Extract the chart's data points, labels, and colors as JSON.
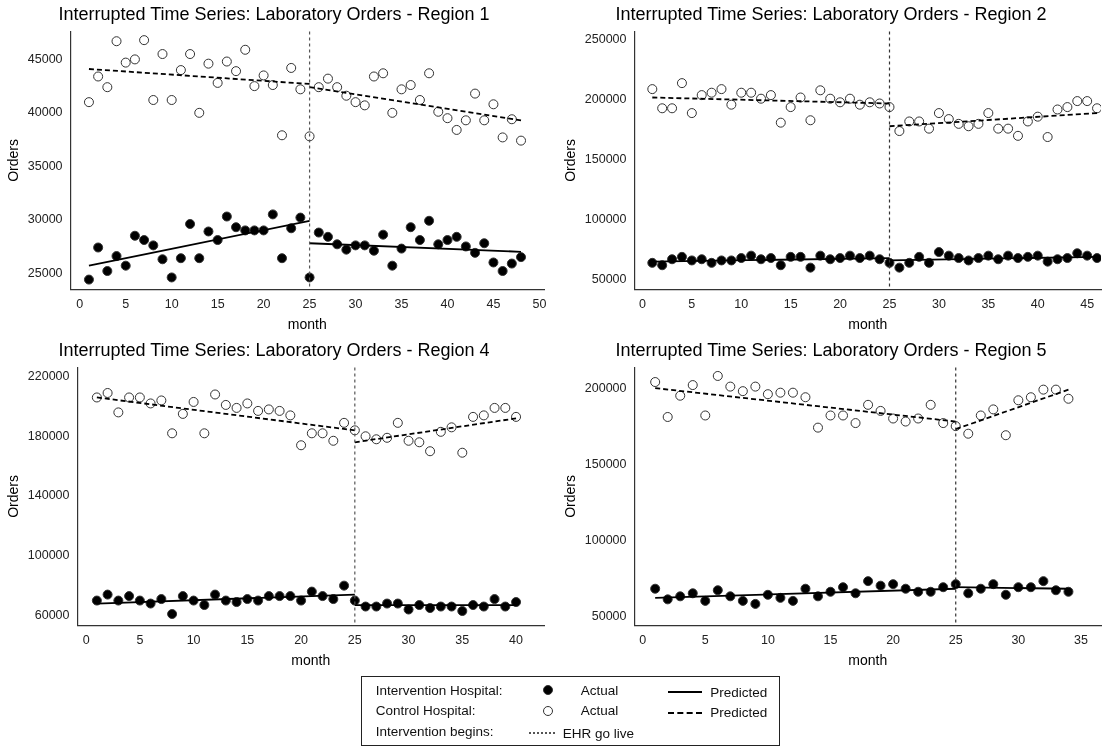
{
  "chart_data": [
    {
      "type": "scatter",
      "title": "Interrupted Time Series: Laboratory Orders - Region 1",
      "xlabel": "month",
      "ylabel": "Orders",
      "xlim": [
        -1,
        50.5
      ],
      "xticks": [
        0,
        5,
        10,
        15,
        20,
        25,
        30,
        35,
        40,
        45,
        50
      ],
      "ylim": [
        23500,
        47600
      ],
      "yticks": [
        25000,
        30000,
        35000,
        40000,
        45000
      ],
      "grid": false,
      "legend": "bottom",
      "annotations": [
        "Intervention Hospital:",
        "Control Hospital:",
        "Intervention begins:"
      ],
      "ref_lines": [
        {
          "axis": "x",
          "value": 25,
          "label": "EHR go live",
          "color": "#555555",
          "line_style": "dotted"
        }
      ],
      "x": [
        1,
        2,
        3,
        4,
        5,
        6,
        7,
        8,
        9,
        10,
        11,
        12,
        13,
        14,
        15,
        16,
        17,
        18,
        19,
        20,
        21,
        22,
        23,
        24,
        25,
        26,
        27,
        28,
        29,
        30,
        31,
        32,
        33,
        34,
        35,
        36,
        37,
        38,
        39,
        40,
        41,
        42,
        43,
        44,
        45,
        46,
        47,
        48
      ],
      "series": [
        {
          "name": "Actual",
          "marker": "circle",
          "color": "#000000",
          "values": [
            24400,
            27400,
            25200,
            26600,
            25700,
            28500,
            28100,
            27600,
            26300,
            24600,
            26400,
            29600,
            26400,
            28900,
            28100,
            30300,
            29300,
            29000,
            29000,
            29000,
            30500,
            26400,
            29200,
            30200,
            24600,
            28800,
            28400,
            27700,
            27200,
            27600,
            27600,
            27100,
            28600,
            25700,
            27300,
            29300,
            28100,
            29900,
            27700,
            28100,
            28400,
            27500,
            26900,
            27800,
            26000,
            25200,
            25900,
            26500
          ]
        },
        {
          "name": "Actual",
          "marker": "circle",
          "color": "#ffffff",
          "values": [
            41000,
            43400,
            42400,
            46700,
            44700,
            45000,
            46800,
            41200,
            45500,
            41200,
            44000,
            45500,
            40000,
            44600,
            42800,
            44800,
            43900,
            45900,
            42500,
            43500,
            42600,
            37900,
            44200,
            42200,
            37800,
            42400,
            43200,
            42400,
            41600,
            41000,
            40700,
            43400,
            43700,
            40000,
            42200,
            42600,
            41200,
            43700,
            40100,
            39500,
            38400,
            39300,
            41800,
            39300,
            40800,
            37700,
            39400,
            37400
          ]
        },
        {
          "name": "Predicted",
          "type": "line",
          "color": "#000000",
          "line_style": "solid",
          "x": [
            1,
            25
          ],
          "values": [
            25700,
            29900
          ]
        },
        {
          "type": "line",
          "color": "#000000",
          "line_style": "solid",
          "x": [
            25,
            48
          ],
          "values": [
            27800,
            27000
          ]
        },
        {
          "name": "Predicted",
          "type": "line",
          "color": "#000000",
          "line_style": "dashed",
          "x": [
            1,
            25
          ],
          "values": [
            44100,
            42700
          ]
        },
        {
          "type": "line",
          "color": "#000000",
          "line_style": "dashed",
          "x": [
            25,
            48
          ],
          "values": [
            42400,
            39300
          ]
        }
      ]
    },
    {
      "type": "scatter",
      "title": "Interrupted Time Series: Laboratory Orders - Region 2",
      "xlabel": "month",
      "ylabel": "Orders",
      "xlim": [
        -0.8,
        46.4
      ],
      "xticks": [
        0,
        5,
        10,
        15,
        20,
        25,
        30,
        35,
        40,
        45
      ],
      "ylim": [
        42000,
        257000
      ],
      "yticks": [
        50000,
        100000,
        150000,
        200000,
        250000
      ],
      "grid": false,
      "ref_lines": [
        {
          "axis": "x",
          "value": 25,
          "color": "#333333",
          "line_style": "dotted"
        }
      ],
      "x": [
        1,
        2,
        3,
        4,
        5,
        6,
        7,
        8,
        9,
        10,
        11,
        12,
        13,
        14,
        15,
        16,
        17,
        18,
        19,
        20,
        21,
        22,
        23,
        24,
        25,
        26,
        27,
        28,
        29,
        30,
        31,
        32,
        33,
        34,
        35,
        36,
        37,
        38,
        39,
        40,
        41,
        42,
        43,
        44,
        45,
        46
      ],
      "series": [
        {
          "marker": "circle",
          "color": "#000000",
          "values": [
            64000,
            62000,
            67000,
            69000,
            66000,
            67000,
            64000,
            66000,
            66000,
            68000,
            70000,
            67000,
            68000,
            62000,
            69000,
            69000,
            60000,
            70000,
            67000,
            68000,
            70000,
            68000,
            70000,
            67000,
            64000,
            60000,
            64000,
            69000,
            64000,
            73000,
            70000,
            68000,
            66000,
            68000,
            70000,
            67000,
            70000,
            68000,
            69000,
            70000,
            65000,
            67000,
            68000,
            72000,
            70000,
            68000
          ]
        },
        {
          "marker": "circle",
          "color": "#ffffff",
          "values": [
            209000,
            193000,
            193000,
            214000,
            189000,
            204000,
            206000,
            209000,
            196000,
            206000,
            206000,
            201000,
            204000,
            181000,
            194000,
            202000,
            183000,
            208000,
            201000,
            198000,
            201000,
            196000,
            198000,
            197000,
            194000,
            174000,
            182000,
            182000,
            176000,
            189000,
            184000,
            180000,
            178000,
            180000,
            189000,
            176000,
            176000,
            170000,
            182000,
            186000,
            169000,
            192000,
            194000,
            199000,
            199000,
            193000
          ]
        },
        {
          "type": "line",
          "color": "#000000",
          "line_style": "solid",
          "x": [
            1,
            25
          ],
          "values": [
            65000,
            68000
          ]
        },
        {
          "type": "line",
          "color": "#000000",
          "line_style": "solid",
          "x": [
            25,
            46
          ],
          "values": [
            66000,
            69000
          ]
        },
        {
          "type": "line",
          "color": "#000000",
          "line_style": "dashed",
          "x": [
            1,
            25
          ],
          "values": [
            202000,
            197000
          ]
        },
        {
          "type": "line",
          "color": "#000000",
          "line_style": "dashed",
          "x": [
            25,
            46
          ],
          "values": [
            178000,
            189000
          ]
        }
      ]
    },
    {
      "type": "scatter",
      "title": "Interrupted Time Series: Laboratory Orders - Region 4",
      "xlabel": "month",
      "ylabel": "Orders",
      "xlim": [
        -0.8,
        42.6
      ],
      "xticks": [
        0,
        5,
        10,
        15,
        20,
        25,
        30,
        35,
        40
      ],
      "ylim": [
        53500,
        226000
      ],
      "yticks": [
        60000,
        100000,
        140000,
        180000,
        220000
      ],
      "grid": false,
      "ref_lines": [
        {
          "axis": "x",
          "value": 25,
          "color": "#555555",
          "line_style": "dotted"
        }
      ],
      "x": [
        1,
        2,
        3,
        4,
        5,
        6,
        7,
        8,
        9,
        10,
        11,
        12,
        13,
        14,
        15,
        16,
        17,
        18,
        19,
        20,
        21,
        22,
        23,
        24,
        25,
        26,
        27,
        28,
        29,
        30,
        31,
        32,
        33,
        34,
        35,
        36,
        37,
        38,
        39,
        40
      ],
      "series": [
        {
          "marker": "circle",
          "color": "#000000",
          "values": [
            70000,
            74000,
            70000,
            73000,
            70000,
            68000,
            71000,
            61000,
            73000,
            70000,
            67000,
            74000,
            70000,
            69000,
            71000,
            70000,
            73000,
            73000,
            73000,
            70000,
            76000,
            73000,
            71000,
            80000,
            70000,
            66000,
            66000,
            68000,
            68000,
            64000,
            67000,
            65000,
            66000,
            66000,
            63000,
            67000,
            66000,
            71000,
            66000,
            69000
          ]
        },
        {
          "marker": "circle",
          "color": "#ffffff",
          "values": [
            206000,
            209000,
            196000,
            206000,
            206000,
            202000,
            204000,
            182000,
            195000,
            203000,
            182000,
            208000,
            201000,
            199000,
            202000,
            197000,
            198000,
            197000,
            194000,
            174000,
            182000,
            182000,
            177000,
            189000,
            184000,
            180000,
            178000,
            179000,
            189000,
            177000,
            176000,
            170000,
            183000,
            186000,
            169000,
            193000,
            194000,
            199000,
            199000,
            193000
          ]
        },
        {
          "type": "line",
          "color": "#000000",
          "line_style": "solid",
          "x": [
            1,
            25
          ],
          "values": [
            68000,
            74000
          ]
        },
        {
          "type": "line",
          "color": "#000000",
          "line_style": "solid",
          "x": [
            25,
            40
          ],
          "values": [
            67000,
            67000
          ]
        },
        {
          "type": "line",
          "color": "#000000",
          "line_style": "dashed",
          "x": [
            1,
            25
          ],
          "values": [
            206000,
            184000
          ]
        },
        {
          "type": "line",
          "color": "#000000",
          "line_style": "dashed",
          "x": [
            25,
            40
          ],
          "values": [
            176000,
            192000
          ]
        }
      ]
    },
    {
      "type": "scatter",
      "title": "Interrupted Time Series: Laboratory Orders - Region 5",
      "xlabel": "month",
      "ylabel": "Orders",
      "xlim": [
        -0.65,
        36.6
      ],
      "xticks": [
        0,
        5,
        10,
        15,
        20,
        25,
        30,
        35
      ],
      "ylim": [
        44000,
        213500
      ],
      "yticks": [
        50000,
        100000,
        150000,
        200000
      ],
      "grid": false,
      "ref_lines": [
        {
          "axis": "x",
          "value": 25,
          "color": "#333333",
          "line_style": "dotted"
        }
      ],
      "x": [
        1,
        2,
        3,
        4,
        5,
        6,
        7,
        8,
        9,
        10,
        11,
        12,
        13,
        14,
        15,
        16,
        17,
        18,
        19,
        20,
        21,
        22,
        23,
        24,
        25,
        26,
        27,
        28,
        29,
        30,
        31,
        32,
        33,
        34
      ],
      "series": [
        {
          "marker": "circle",
          "color": "#000000",
          "values": [
            68000,
            61000,
            63000,
            65000,
            60000,
            67000,
            63000,
            60000,
            58000,
            64000,
            62000,
            60000,
            68000,
            63000,
            66000,
            69000,
            65000,
            73000,
            70000,
            71000,
            68000,
            66000,
            66000,
            69000,
            71000,
            65000,
            68000,
            71000,
            64000,
            69000,
            69000,
            73000,
            67000,
            66000
          ]
        },
        {
          "marker": "circle",
          "color": "#ffffff",
          "values": [
            204000,
            181000,
            195000,
            202000,
            182000,
            208000,
            201000,
            198000,
            201000,
            196000,
            197000,
            197000,
            194000,
            174000,
            182000,
            182000,
            177000,
            189000,
            185000,
            180000,
            178000,
            180000,
            189000,
            177000,
            175000,
            170000,
            182000,
            186000,
            169000,
            192000,
            194000,
            199000,
            199000,
            193000
          ]
        },
        {
          "type": "line",
          "color": "#000000",
          "line_style": "solid",
          "x": [
            1,
            25
          ],
          "values": [
            62000,
            68000
          ]
        },
        {
          "type": "line",
          "color": "#000000",
          "line_style": "solid",
          "x": [
            25,
            34
          ],
          "values": [
            69000,
            68000
          ]
        },
        {
          "type": "line",
          "color": "#000000",
          "line_style": "dashed",
          "x": [
            1,
            25
          ],
          "values": [
            200000,
            178000
          ]
        },
        {
          "type": "line",
          "color": "#000000",
          "line_style": "dashed",
          "x": [
            25,
            34
          ],
          "values": [
            173000,
            199000
          ]
        }
      ]
    }
  ]
}
